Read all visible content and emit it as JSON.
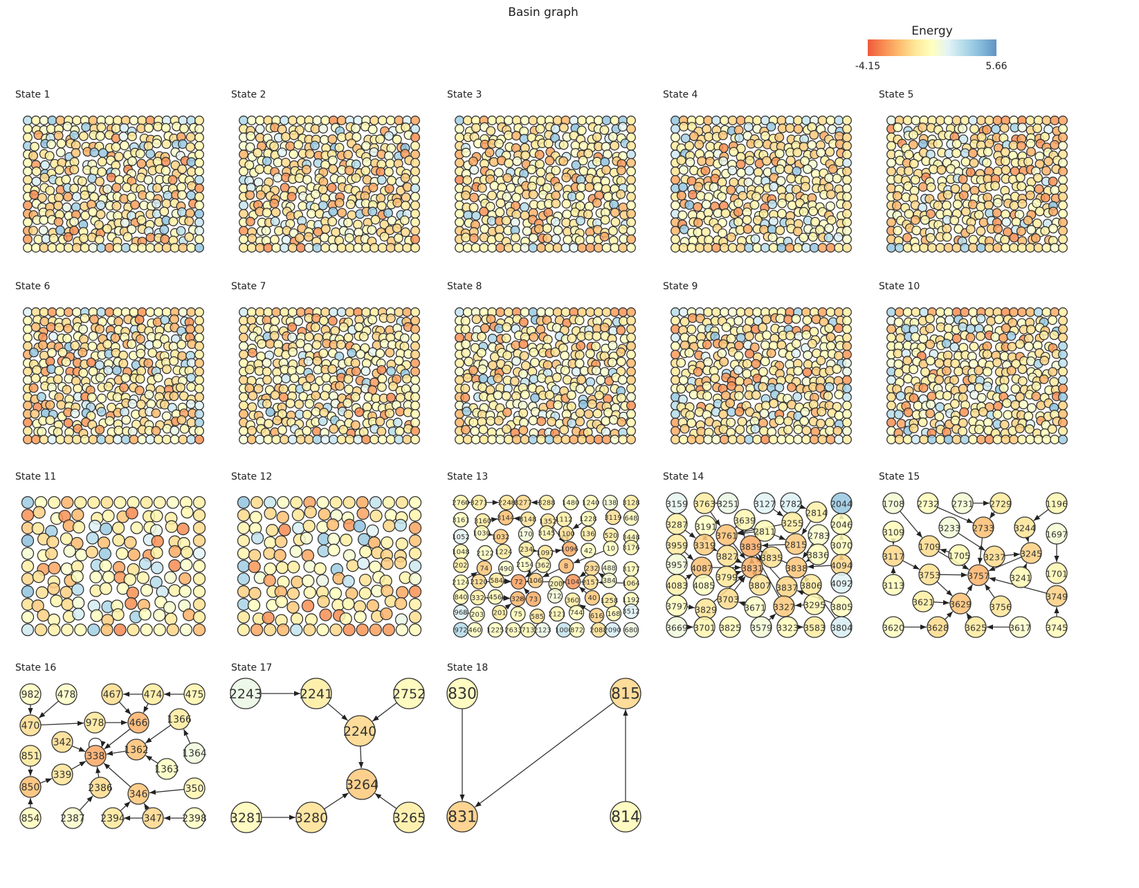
{
  "title": "Basin graph",
  "colorbar": {
    "label": "Energy",
    "min": -4.15,
    "max": 5.66,
    "min_label": "-4.15",
    "max_label": "5.66",
    "colormap": [
      "#ee5a3c",
      "#f88d52",
      "#fdbe70",
      "#fee99a",
      "#ffffbf",
      "#e2f3f6",
      "#b3dbe9",
      "#86bcdb",
      "#5f93c5"
    ]
  },
  "dense_states": [
    {
      "title": "State 1"
    },
    {
      "title": "State 2"
    },
    {
      "title": "State 3"
    },
    {
      "title": "State 4"
    },
    {
      "title": "State 5"
    },
    {
      "title": "State 6"
    },
    {
      "title": "State 7"
    },
    {
      "title": "State 8"
    },
    {
      "title": "State 9"
    },
    {
      "title": "State 10"
    },
    {
      "title": "State 11"
    },
    {
      "title": "State 12"
    }
  ],
  "state13": {
    "title": "State 13",
    "rows": [
      [
        [
          "2760",
          0.3
        ],
        [
          "3271",
          -0.3
        ],
        [
          "2248",
          -0.6
        ],
        [
          "3277",
          -1.0
        ],
        [
          "3288",
          -0.2
        ],
        [
          "1480",
          0.8
        ],
        [
          "1240",
          0.6
        ],
        [
          "138",
          1.2
        ],
        [
          "3128",
          -0.3
        ]
      ],
      [
        [
          "3161",
          0.7
        ],
        [
          "3160",
          -0.4
        ],
        [
          "3144",
          -1.7
        ],
        [
          "3148",
          -0.6
        ],
        [
          "1352",
          -0.6
        ],
        [
          "1112",
          -0.2
        ],
        [
          "1228",
          0.5
        ],
        [
          "3119",
          -0.8
        ],
        [
          "648",
          0.6
        ]
      ],
      [
        [
          "1052",
          1.9
        ],
        [
          "1030",
          0.6
        ],
        [
          "1032",
          -1.5
        ],
        [
          "170",
          1.3
        ],
        [
          "3145",
          0.2
        ],
        [
          "1100",
          -0.8
        ],
        [
          "136",
          -0.3
        ],
        [
          "520",
          -0.4
        ],
        [
          "3448",
          0.4
        ]
      ],
      [
        [
          "1048",
          0.4
        ],
        [
          "2122",
          0.8
        ],
        [
          "1224",
          -0.3
        ],
        [
          "234",
          -0.4
        ],
        [
          "1097",
          -0.6
        ],
        [
          "1096",
          -2.2
        ],
        [
          "42",
          0.8
        ],
        [
          "10",
          0.8
        ],
        [
          "3176",
          0.3
        ]
      ],
      [
        [
          "202",
          -0.3
        ],
        [
          "74",
          -1.5
        ],
        [
          "490",
          1.0
        ],
        [
          "2154",
          0.8
        ],
        [
          "362",
          0.1
        ],
        [
          "8",
          -1.8
        ],
        [
          "232",
          -1.0
        ],
        [
          "488",
          1.2
        ],
        [
          "3177",
          0.5
        ]
      ],
      [
        [
          "2124",
          0.6
        ],
        [
          "2120",
          -1.0
        ],
        [
          "584",
          -0.4
        ],
        [
          "72",
          -2.5
        ],
        [
          "106",
          -1.3
        ],
        [
          "200",
          0.2
        ],
        [
          "104",
          -2.8
        ],
        [
          "2157",
          -0.8
        ],
        [
          "384",
          1.1
        ],
        [
          "1064",
          -0.2
        ]
      ],
      [
        [
          "840",
          0.3
        ],
        [
          "332",
          -0.2
        ],
        [
          "456",
          0.4
        ],
        [
          "328",
          -1.9
        ],
        [
          "73",
          -2.2
        ],
        [
          "712",
          1.3
        ],
        [
          "360",
          -0.2
        ],
        [
          "40",
          -1.5
        ],
        [
          "1258",
          -0.5
        ],
        [
          "1192",
          0.6
        ]
      ],
      [
        [
          "968",
          2.1
        ],
        [
          "203",
          0.6
        ],
        [
          "201",
          -0.4
        ],
        [
          "75",
          0.4
        ],
        [
          "585",
          -0.6
        ],
        [
          "2121",
          0.2
        ],
        [
          "744",
          0.7
        ],
        [
          "616",
          -1.2
        ],
        [
          "168",
          0.3
        ],
        [
          "3512",
          2.0
        ]
      ],
      [
        [
          "972",
          3.2
        ],
        [
          "460",
          0.8
        ],
        [
          "1225",
          0.7
        ],
        [
          "2633",
          0.6
        ],
        [
          "713",
          0.4
        ],
        [
          "2123",
          1.6
        ],
        [
          "1000",
          2.8
        ],
        [
          "872",
          0.7
        ],
        [
          "2088",
          -0.7
        ],
        [
          "2090",
          2.3
        ],
        [
          "680",
          1.5
        ]
      ]
    ],
    "edges": [
      [
        "2760",
        "3271"
      ],
      [
        "3271",
        "2248"
      ],
      [
        "2248",
        "3277"
      ],
      [
        "3288",
        "3277"
      ],
      [
        "3160",
        "3144"
      ],
      [
        "3148",
        "3144"
      ],
      [
        "1030",
        "1032"
      ],
      [
        "1352",
        "1096"
      ],
      [
        "1100",
        "1096"
      ],
      [
        "1228",
        "1100"
      ],
      [
        "1097",
        "1096"
      ],
      [
        "234",
        "1097"
      ],
      [
        "2154",
        "106"
      ],
      [
        "8",
        "106"
      ],
      [
        "106",
        "72"
      ],
      [
        "362",
        "72"
      ],
      [
        "584",
        "72"
      ],
      [
        "2120",
        "72"
      ],
      [
        "72",
        "104"
      ],
      [
        "200",
        "104"
      ],
      [
        "232",
        "104"
      ],
      [
        "10",
        "8"
      ],
      [
        "2157",
        "104"
      ],
      [
        "40",
        "104"
      ],
      [
        "73",
        "72"
      ],
      [
        "328",
        "73"
      ],
      [
        "456",
        "328"
      ],
      [
        "332",
        "328"
      ],
      [
        "201",
        "328"
      ],
      [
        "616",
        "360"
      ],
      [
        "968",
        "203"
      ],
      [
        "2124",
        "74"
      ],
      [
        "384",
        "232"
      ],
      [
        "1064",
        "2157"
      ]
    ]
  },
  "state14": {
    "title": "State 14",
    "nodes": [
      [
        "3159",
        1.8
      ],
      [
        "3763",
        -0.3
      ],
      [
        "3251",
        1.6
      ],
      [
        "3127",
        2.0
      ],
      [
        "2782",
        2.1
      ],
      [
        "2814",
        0.0
      ],
      [
        "2044",
        4.0
      ],
      [
        "3287",
        -0.1
      ],
      [
        "3191",
        0.8
      ],
      [
        "3639",
        0.3
      ],
      [
        "3255",
        -0.3
      ],
      [
        "2046",
        0.7
      ],
      [
        "3761",
        -1.6
      ],
      [
        "2811",
        0.4
      ],
      [
        "2783",
        1.0
      ],
      [
        "3959",
        -0.4
      ],
      [
        "3319",
        -1.3
      ],
      [
        "3839",
        -2.2
      ],
      [
        "2815",
        -1.4
      ],
      [
        "3070",
        0.6
      ],
      [
        "3827",
        -0.7
      ],
      [
        "3835",
        -0.7
      ],
      [
        "3836",
        0.7
      ],
      [
        "3957",
        1.3
      ],
      [
        "4087",
        -1.7
      ],
      [
        "3831",
        -2.0
      ],
      [
        "3838",
        -1.5
      ],
      [
        "4094",
        -1.0
      ],
      [
        "3799",
        -0.5
      ],
      [
        "3807",
        -0.6
      ],
      [
        "3837",
        -1.1
      ],
      [
        "3806",
        -0.4
      ],
      [
        "4092",
        2.0
      ],
      [
        "4083",
        0.0
      ],
      [
        "4085",
        0.8
      ],
      [
        "3797",
        0.7
      ],
      [
        "3829",
        -0.6
      ],
      [
        "3703",
        -0.9
      ],
      [
        "3671",
        0.9
      ],
      [
        "3327",
        -1.4
      ],
      [
        "3295",
        0.3
      ],
      [
        "3805",
        0.7
      ],
      [
        "3669",
        1.4
      ],
      [
        "3701",
        0.2
      ],
      [
        "3825",
        0.6
      ],
      [
        "3579",
        1.3
      ],
      [
        "3323",
        0.6
      ],
      [
        "3583",
        -0.3
      ],
      [
        "3804",
        2.3
      ]
    ],
    "edges": [
      [
        "3251",
        "3763"
      ],
      [
        "3763",
        "3761"
      ],
      [
        "3127",
        "3255"
      ],
      [
        "2782",
        "2814"
      ],
      [
        "2811",
        "3761"
      ],
      [
        "3255",
        "3761"
      ],
      [
        "3287",
        "3319"
      ],
      [
        "3191",
        "3319"
      ],
      [
        "3639",
        "3761"
      ],
      [
        "2811",
        "2815"
      ],
      [
        "2814",
        "2815"
      ],
      [
        "2815",
        "3839"
      ],
      [
        "3761",
        "3831"
      ],
      [
        "3959",
        "4087"
      ],
      [
        "3319",
        "3827"
      ],
      [
        "3827",
        "3831"
      ],
      [
        "4087",
        "3831"
      ],
      [
        "3835",
        "3839"
      ],
      [
        "3831",
        "3839"
      ],
      [
        "3838",
        "3839"
      ],
      [
        "3836",
        "3838"
      ],
      [
        "2783",
        "3838"
      ],
      [
        "2044",
        "2046"
      ],
      [
        "2046",
        "3070"
      ],
      [
        "3070",
        "4094"
      ],
      [
        "4094",
        "3838"
      ],
      [
        "4083",
        "4087"
      ],
      [
        "3799",
        "3831"
      ],
      [
        "3807",
        "3831"
      ],
      [
        "3837",
        "3839"
      ],
      [
        "3806",
        "3838"
      ],
      [
        "3797",
        "3829"
      ],
      [
        "3829",
        "3831"
      ],
      [
        "3703",
        "3831"
      ],
      [
        "3671",
        "3703"
      ],
      [
        "3327",
        "3839"
      ],
      [
        "3295",
        "3327"
      ],
      [
        "3323",
        "3583"
      ],
      [
        "3669",
        "3701"
      ],
      [
        "3805",
        "3837"
      ],
      [
        "3804",
        "3806"
      ],
      [
        "3579",
        "3327"
      ],
      [
        "3839",
        "3839"
      ]
    ]
  },
  "state15": {
    "title": "State 15",
    "nodes": [
      [
        "1708",
        1.2
      ],
      [
        "2732",
        0.6
      ],
      [
        "2731",
        1.2
      ],
      [
        "2729",
        -0.4
      ],
      [
        "1196",
        0.3
      ],
      [
        "3109",
        0.6
      ],
      [
        "3233",
        1.3
      ],
      [
        "2733",
        -1.7
      ],
      [
        "3244",
        -0.6
      ],
      [
        "1697",
        1.2
      ],
      [
        "3117",
        -1.0
      ],
      [
        "1709",
        -0.9
      ],
      [
        "1705",
        0.4
      ],
      [
        "3237",
        -0.9
      ],
      [
        "3245",
        -1.2
      ],
      [
        "1701",
        0.3
      ],
      [
        "3113",
        0.6
      ],
      [
        "3753",
        -0.7
      ],
      [
        "3757",
        -2.0
      ],
      [
        "3241",
        0.4
      ],
      [
        "3621",
        -0.2
      ],
      [
        "3629",
        -1.6
      ],
      [
        "3756",
        -0.6
      ],
      [
        "3749",
        -1.2
      ],
      [
        "3620",
        0.7
      ],
      [
        "3628",
        -0.9
      ],
      [
        "3625",
        -0.4
      ],
      [
        "3617",
        1.0
      ],
      [
        "3745",
        0.5
      ]
    ],
    "edges": [
      [
        "2731",
        "2729"
      ],
      [
        "2729",
        "2733"
      ],
      [
        "2732",
        "2733"
      ],
      [
        "1708",
        "1709"
      ],
      [
        "3109",
        "3117"
      ],
      [
        "3113",
        "3117"
      ],
      [
        "1705",
        "1709"
      ],
      [
        "1709",
        "3757"
      ],
      [
        "3233",
        "3237"
      ],
      [
        "2733",
        "3757"
      ],
      [
        "3237",
        "3245"
      ],
      [
        "3245",
        "3757"
      ],
      [
        "3117",
        "3753"
      ],
      [
        "3753",
        "3757"
      ],
      [
        "3753",
        "3629"
      ],
      [
        "3621",
        "3629"
      ],
      [
        "3629",
        "3757"
      ],
      [
        "3756",
        "3757"
      ],
      [
        "3749",
        "3757"
      ],
      [
        "1697",
        "1701"
      ],
      [
        "3244",
        "3245"
      ],
      [
        "1196",
        "3244"
      ],
      [
        "3620",
        "3628"
      ],
      [
        "3628",
        "3629"
      ],
      [
        "3617",
        "3625"
      ],
      [
        "3625",
        "3629"
      ],
      [
        "3745",
        "3749"
      ],
      [
        "3241",
        "3245"
      ]
    ]
  },
  "state16": {
    "title": "State 16",
    "nodes": [
      [
        "982",
        0.8
      ],
      [
        "478",
        0.9
      ],
      [
        "467",
        -0.8
      ],
      [
        "474",
        -0.3
      ],
      [
        "475",
        0.2
      ],
      [
        "470",
        -0.8
      ],
      [
        "978",
        -0.5
      ],
      [
        "466",
        -2.0
      ],
      [
        "1366",
        -0.4
      ],
      [
        "342",
        -0.8
      ],
      [
        "338",
        -2.3
      ],
      [
        "1362",
        -1.6
      ],
      [
        "1364",
        1.4
      ],
      [
        "851",
        -0.5
      ],
      [
        "1363",
        0.8
      ],
      [
        "339",
        -0.6
      ],
      [
        "850",
        -1.7
      ],
      [
        "2386",
        -0.9
      ],
      [
        "346",
        -1.5
      ],
      [
        "350",
        0.2
      ],
      [
        "854",
        0.7
      ],
      [
        "2387",
        1.0
      ],
      [
        "2394",
        -0.5
      ],
      [
        "347",
        -1.0
      ],
      [
        "2398",
        0.8
      ]
    ],
    "edges": [
      [
        "982",
        "470"
      ],
      [
        "478",
        "470"
      ],
      [
        "474",
        "467"
      ],
      [
        "475",
        "474"
      ],
      [
        "470",
        "978"
      ],
      [
        "978",
        "466"
      ],
      [
        "467",
        "466"
      ],
      [
        "474",
        "466"
      ],
      [
        "466",
        "338"
      ],
      [
        "342",
        "338"
      ],
      [
        "1366",
        "1362"
      ],
      [
        "1364",
        "1366"
      ],
      [
        "1362",
        "338"
      ],
      [
        "1363",
        "1362"
      ],
      [
        "851",
        "850"
      ],
      [
        "850",
        "339"
      ],
      [
        "339",
        "338"
      ],
      [
        "2386",
        "338"
      ],
      [
        "346",
        "338"
      ],
      [
        "350",
        "346"
      ],
      [
        "854",
        "850"
      ],
      [
        "2387",
        "2386"
      ],
      [
        "2394",
        "346"
      ],
      [
        "347",
        "2394"
      ],
      [
        "2398",
        "347"
      ],
      [
        "347",
        "346"
      ],
      [
        "338",
        "338"
      ]
    ]
  },
  "state17": {
    "title": "State 17",
    "nodes": [
      [
        "2243",
        1.6
      ],
      [
        "2241",
        -0.3
      ],
      [
        "2752",
        0.4
      ],
      [
        "2240",
        -1.0
      ],
      [
        "3264",
        -1.4
      ],
      [
        "3281",
        0.5
      ],
      [
        "3280",
        -0.7
      ],
      [
        "3265",
        -0.2
      ]
    ],
    "edges": [
      [
        "2243",
        "2241"
      ],
      [
        "2241",
        "2240"
      ],
      [
        "2752",
        "2240"
      ],
      [
        "2240",
        "3264"
      ],
      [
        "3281",
        "3280"
      ],
      [
        "3280",
        "3264"
      ],
      [
        "3265",
        "3264"
      ]
    ]
  },
  "state18": {
    "title": "State 18",
    "nodes": [
      [
        "830",
        0.5
      ],
      [
        "815",
        -1.0
      ],
      [
        "831",
        -1.3
      ],
      [
        "814",
        0.5
      ]
    ],
    "edges": [
      [
        "830",
        "831"
      ],
      [
        "815",
        "831"
      ],
      [
        "814",
        "815"
      ]
    ]
  }
}
